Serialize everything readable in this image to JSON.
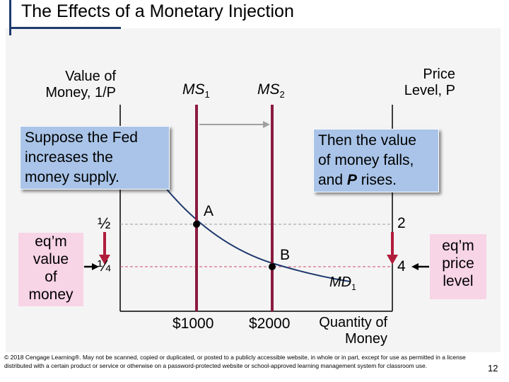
{
  "slide": {
    "title": "The Effects of a Monetary Injection",
    "page_number": "12",
    "copyright": "© 2018 Cengage Learning®. May not be scanned, copied or duplicated, or posted to a publicly accessible website, in whole or in part, except for use as permitted in a license distributed with a certain product or service or otherwise on a password-protected website or school-approved learning management system for classroom use."
  },
  "diagram": {
    "left_axis_label": [
      "Value of",
      "Money, 1/P"
    ],
    "right_axis_label": [
      "Price",
      "Level, P"
    ],
    "x_axis_label": [
      "Quantity of",
      "Money"
    ],
    "ms1_label": "MS",
    "ms1_sub": "1",
    "ms2_label": "MS",
    "ms2_sub": "2",
    "md_label": "MD",
    "md_sub": "1",
    "point_a": "A",
    "point_b": "B",
    "left_tick_half": "½",
    "left_tick_quarter": "¼",
    "right_tick_2": "2",
    "right_tick_4": "4",
    "x_tick_1000": "$1000",
    "x_tick_2000": "$2000",
    "callout_left": [
      "Suppose the Fed",
      "increases the",
      "money supply."
    ],
    "callout_right": [
      "Then the value",
      "of money falls,",
      "and ",
      "P",
      " rises."
    ],
    "eq_value_label": [
      "eq’m",
      "value",
      "of",
      "money"
    ],
    "eq_price_label": [
      "eq’m",
      "price",
      "level"
    ],
    "colors": {
      "ms_line": "#8b1a3e",
      "arrow_red": "#b01c3c",
      "curve": "#1f3a6e",
      "dashed": "#d04a6a",
      "shift_arrow": "#a0a0a0",
      "callout_bg": "#a9c4e8",
      "pink_box": "#f7d4e6"
    }
  }
}
